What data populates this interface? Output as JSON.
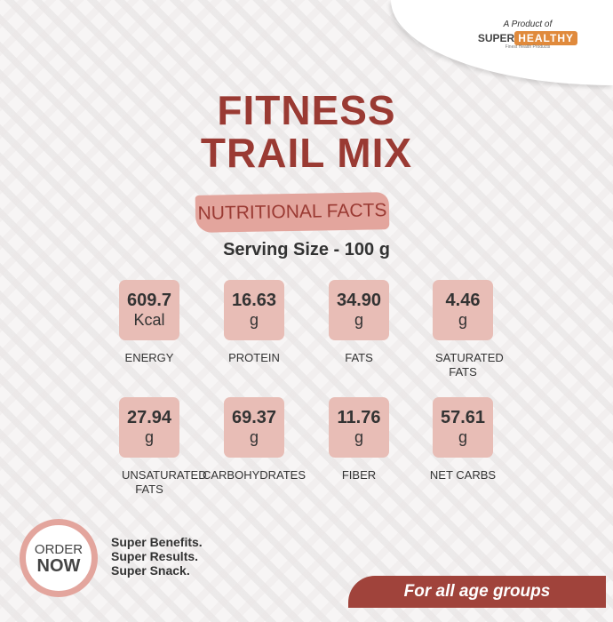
{
  "brand": {
    "tagline": "A Product of",
    "name_part1": "SUPER",
    "name_part2": "HEALTHY",
    "subtitle": "Finest Health Products"
  },
  "title": {
    "line1": "FITNESS",
    "line2": "TRAIL MIX"
  },
  "banner": "NUTRITIONAL FACTS",
  "serving_size": "Serving Size - 100 g",
  "facts": [
    {
      "value": "609.7",
      "unit": "Kcal",
      "label": "ENERGY"
    },
    {
      "value": "16.63",
      "unit": "g",
      "label": "PROTEIN"
    },
    {
      "value": "34.90",
      "unit": "g",
      "label": "FATS"
    },
    {
      "value": "4.46",
      "unit": "g",
      "label": "SATURATED FATS"
    },
    {
      "value": "27.94",
      "unit": "g",
      "label": "UNSATURATED FATS"
    },
    {
      "value": "69.37",
      "unit": "g",
      "label": "CARBOHYDRATES"
    },
    {
      "value": "11.76",
      "unit": "g",
      "label": "FIBER"
    },
    {
      "value": "57.61",
      "unit": "g",
      "label": "NET CARBS"
    }
  ],
  "order": {
    "line1": "ORDER",
    "line2": "NOW"
  },
  "slogan": [
    "Super Benefits.",
    "Super Results.",
    "Super Snack."
  ],
  "age_banner": "For all age groups",
  "colors": {
    "accent": "#9a3a33",
    "box": "#e8bdb6",
    "banner": "#e3a59d",
    "brand_orange": "#e08a3c"
  }
}
